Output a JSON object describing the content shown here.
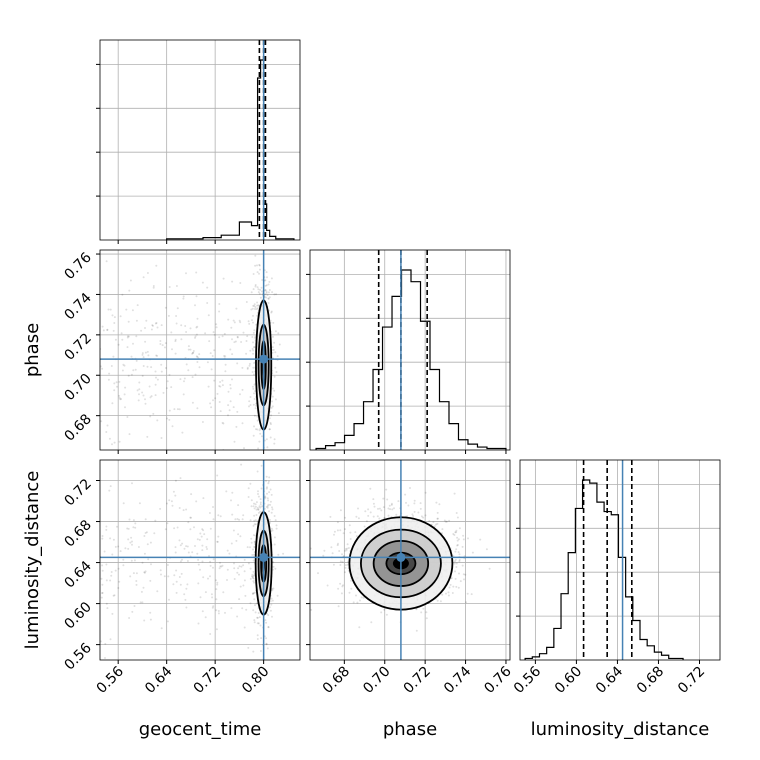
{
  "chart_data": {
    "type": "corner",
    "title": "",
    "parameters": [
      {
        "name": "geocent_time",
        "truth": 0.8,
        "range": [
          0.53,
          0.86
        ],
        "ticks": [
          0.56,
          0.64,
          0.72,
          0.8
        ],
        "quantiles": [
          0.793,
          0.8,
          0.803
        ]
      },
      {
        "name": "phase",
        "truth": 0.708,
        "range": [
          0.663,
          0.762
        ],
        "ticks": [
          0.68,
          0.7,
          0.72,
          0.74,
          0.76
        ],
        "quantiles": [
          0.697,
          0.708,
          0.721
        ]
      },
      {
        "name": "luminosity_distance",
        "truth": 0.645,
        "range": [
          0.545,
          0.74
        ],
        "ticks": [
          0.56,
          0.6,
          0.64,
          0.68,
          0.72
        ],
        "quantiles": [
          0.607,
          0.63,
          0.654
        ]
      }
    ],
    "y_ticks": {
      "phase": [
        0.68,
        0.7,
        0.72,
        0.74,
        0.76
      ],
      "luminosity_distance": [
        0.56,
        0.6,
        0.64,
        0.68,
        0.72
      ]
    },
    "histograms": [
      {
        "param": "geocent_time",
        "bin_edges": [
          0.64,
          0.7,
          0.73,
          0.76,
          0.78,
          0.79,
          0.795,
          0.8,
          0.805,
          0.81,
          0.82,
          0.85
        ],
        "counts": [
          1,
          2,
          4,
          15,
          12,
          135,
          150,
          30,
          8,
          3,
          1
        ]
      },
      {
        "param": "phase",
        "bin_edges": [
          0.666,
          0.6707,
          0.6754,
          0.6801,
          0.6848,
          0.6895,
          0.6942,
          0.6989,
          0.7036,
          0.7083,
          0.713,
          0.7177,
          0.7224,
          0.7271,
          0.7318,
          0.7365,
          0.7412,
          0.7459,
          0.7506,
          0.7553,
          0.76
        ],
        "counts": [
          1,
          3,
          5,
          10,
          18,
          33,
          55,
          84,
          105,
          123,
          115,
          88,
          55,
          33,
          18,
          7,
          4,
          2,
          1,
          1
        ]
      },
      {
        "param": "luminosity_distance",
        "bin_edges": [
          0.55,
          0.557,
          0.564,
          0.571,
          0.578,
          0.585,
          0.592,
          0.599,
          0.606,
          0.613,
          0.62,
          0.627,
          0.634,
          0.641,
          0.648,
          0.655,
          0.662,
          0.669,
          0.676,
          0.683,
          0.69,
          0.697,
          0.704
        ],
        "counts": [
          1,
          2,
          4,
          8,
          20,
          42,
          68,
          96,
          114,
          112,
          100,
          94,
          92,
          65,
          40,
          25,
          13,
          9,
          5,
          3,
          1,
          1
        ]
      }
    ],
    "scatter_2d": [
      {
        "x": "geocent_time",
        "y": "phase",
        "truth": [
          0.8,
          0.708
        ],
        "contour_half_widths": [
          [
            0.0036,
            0.012
          ],
          [
            0.0084,
            0.02
          ],
          [
            0.0126,
            0.032
          ]
        ]
      },
      {
        "x": "geocent_time",
        "y": "luminosity_distance",
        "truth": [
          0.8,
          0.645
        ],
        "contour_half_widths": [
          [
            0.0042,
            0.018
          ],
          [
            0.0084,
            0.032
          ],
          [
            0.0132,
            0.05
          ]
        ]
      },
      {
        "x": "phase",
        "y": "luminosity_distance",
        "truth": [
          0.708,
          0.645
        ],
        "contour_half_widths": [
          [
            0.0072,
            0.0105
          ],
          [
            0.0135,
            0.022
          ],
          [
            0.0198,
            0.033
          ],
          [
            0.0255,
            0.045
          ]
        ]
      }
    ],
    "colors": {
      "truth": "#4682b4",
      "grid": "#b0b0b0",
      "lines": "#000000"
    },
    "grid": true
  }
}
